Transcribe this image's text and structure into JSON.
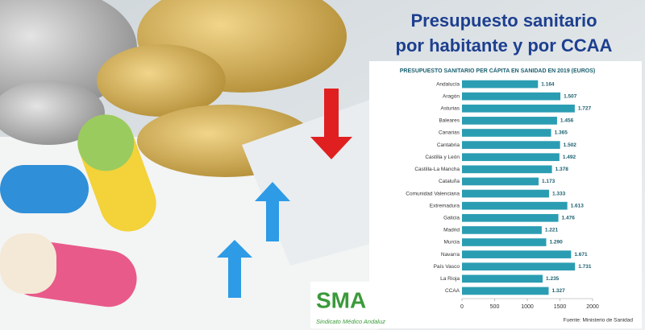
{
  "heading": [
    "Presupuesto sanitario",
    "por habitante y por CCAA"
  ],
  "logo": {
    "mark": "SMA",
    "name": "Sindicato Médico Andaluz"
  },
  "chart_data": {
    "type": "bar",
    "horizontal": true,
    "title": "PRESUPUESTO SANITARIO PER CÁPITA EN SANIDAD EN 2019 (EUROS)",
    "source": "Fuente: Ministerio de Sanidad",
    "categories": [
      "Andalucía",
      "Aragón",
      "Asturias",
      "Baleares",
      "Canarias",
      "Cantabria",
      "Castilla y León",
      "Castilla-La Mancha",
      "Cataluña",
      "Comunidad Valenciana",
      "Extremadura",
      "Galicia",
      "Madrid",
      "Murcia",
      "Navarra",
      "País Vasco",
      "La Rioja",
      "CCAA"
    ],
    "values": [
      1164,
      1507,
      1727,
      1456,
      1365,
      1502,
      1492,
      1378,
      1173,
      1333,
      1613,
      1476,
      1221,
      1290,
      1671,
      1731,
      1235,
      1327
    ],
    "value_labels": [
      "1.164",
      "1.507",
      "1.727",
      "1.456",
      "1.365",
      "1.502",
      "1.492",
      "1.378",
      "1.173",
      "1.333",
      "1.613",
      "1.476",
      "1.221",
      "1.290",
      "1.671",
      "1.731",
      "1.235",
      "1.327"
    ],
    "color": "#2b9db2",
    "xlim": [
      0,
      2000
    ],
    "xticks": [
      0,
      500,
      1000,
      1500,
      2000
    ],
    "grid": false
  }
}
